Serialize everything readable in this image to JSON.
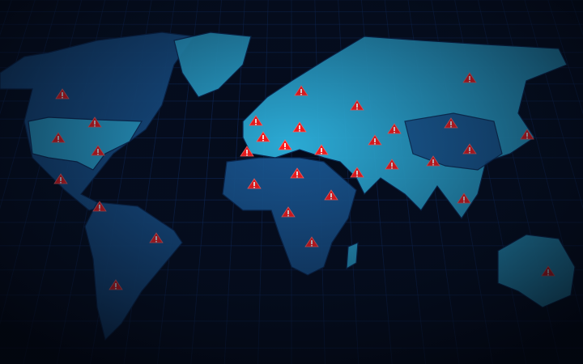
{
  "map": {
    "style": "world-map-threat-overlay",
    "marker_icon": "warning-triangle-icon",
    "colors": {
      "background": "#040a18",
      "grid": "#12306a",
      "land_light": "#2fb8e4",
      "land_dark": "#1a5a96",
      "border": "#0b2a55",
      "alert": "#ff1a1a"
    }
  }
}
